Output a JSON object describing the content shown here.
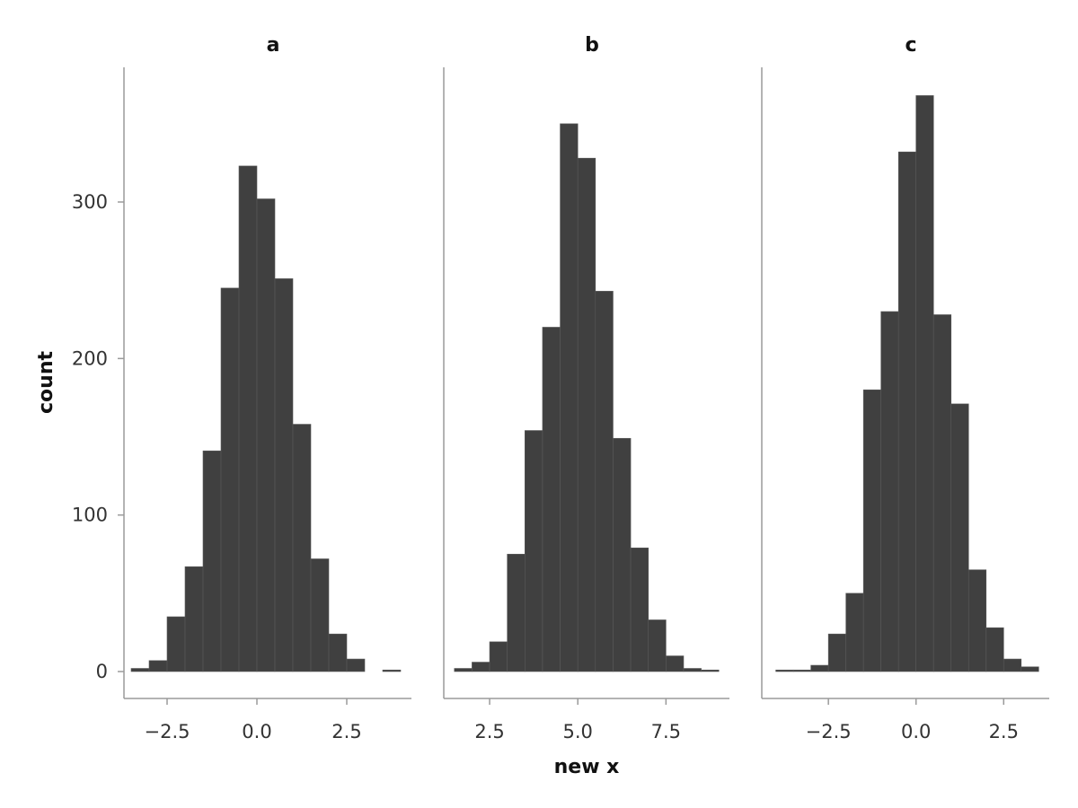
{
  "chart_data": {
    "type": "bar",
    "xlabel": "new x",
    "ylabel": "count",
    "ylim": [
      0,
      375
    ],
    "yticks": [
      0,
      100,
      200,
      300
    ],
    "bar_color": "#404040",
    "axis_color": "#9a9a9a",
    "facets": [
      {
        "title": "a",
        "xlim": [
          -3.7,
          4.3
        ],
        "xticks": [
          -2.5,
          0.0,
          2.5
        ],
        "xtick_labels": [
          "−2.5",
          "0.0",
          "2.5"
        ],
        "bin_width": 0.5,
        "bin_starts": [
          -3.5,
          -3.0,
          -2.5,
          -2.0,
          -1.5,
          -1.0,
          -0.5,
          0.0,
          0.5,
          1.0,
          1.5,
          2.0,
          2.5,
          3.0,
          3.5
        ],
        "counts": [
          2,
          7,
          35,
          67,
          141,
          245,
          323,
          302,
          251,
          158,
          72,
          24,
          8,
          0,
          1
        ]
      },
      {
        "title": "b",
        "xlim": [
          1.2,
          9.3
        ],
        "xticks": [
          2.5,
          5.0,
          7.5
        ],
        "xtick_labels": [
          "2.5",
          "5.0",
          "7.5"
        ],
        "bin_width": 0.5,
        "bin_starts": [
          1.5,
          2.0,
          2.5,
          3.0,
          3.5,
          4.0,
          4.5,
          5.0,
          5.5,
          6.0,
          6.5,
          7.0,
          7.5,
          8.0,
          8.5
        ],
        "counts": [
          2,
          6,
          19,
          75,
          154,
          220,
          350,
          328,
          243,
          149,
          79,
          33,
          10,
          2,
          1
        ]
      },
      {
        "title": "c",
        "xlim": [
          -4.4,
          3.8
        ],
        "xticks": [
          -2.5,
          0.0,
          2.5
        ],
        "xtick_labels": [
          "−2.5",
          "0.0",
          "2.5"
        ],
        "bin_width": 0.5,
        "bin_starts": [
          -4.0,
          -3.5,
          -3.0,
          -2.5,
          -2.0,
          -1.5,
          -1.0,
          -0.5,
          0.0,
          0.5,
          1.0,
          1.5,
          2.0,
          2.5,
          3.0
        ],
        "counts": [
          1,
          1,
          4,
          24,
          50,
          180,
          230,
          332,
          368,
          228,
          171,
          65,
          28,
          8,
          3
        ]
      }
    ]
  }
}
